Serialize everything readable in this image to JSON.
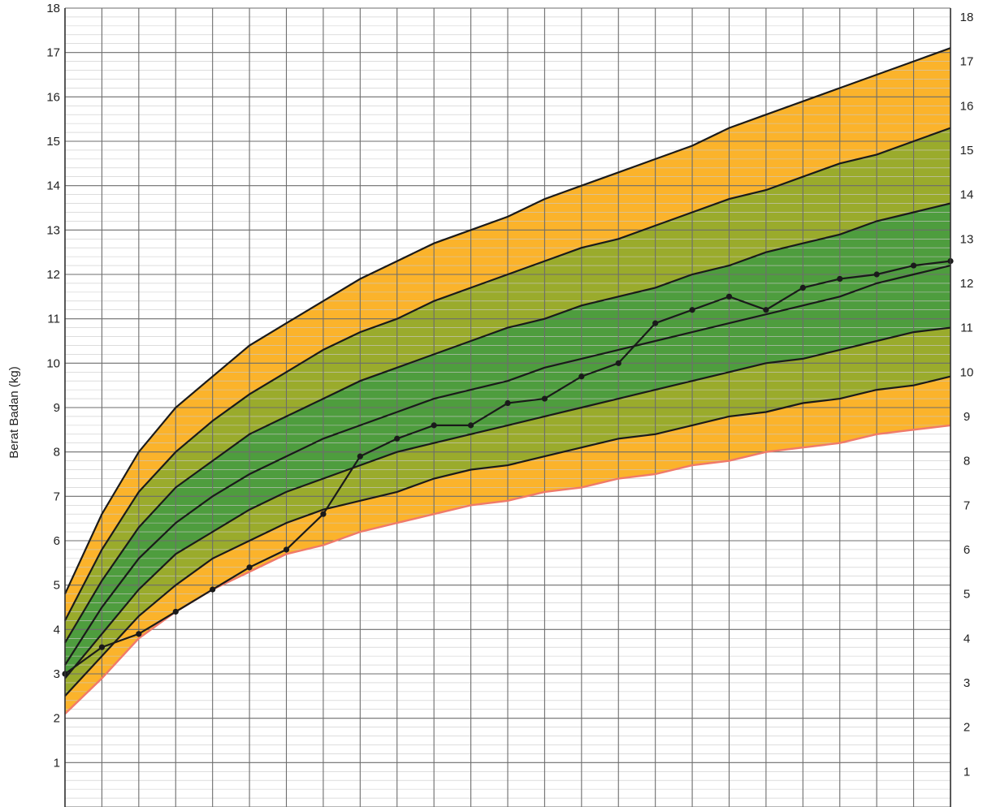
{
  "chart_data": {
    "type": "line",
    "title": "",
    "ylabel": "Berat Badan (kg)",
    "xlabel": "",
    "ylim": [
      0,
      18
    ],
    "xlim": [
      0,
      24
    ],
    "y_ticks_left": [
      "1",
      "2",
      "3",
      "4",
      "5",
      "6",
      "7",
      "8",
      "9",
      "10",
      "11",
      "12",
      "13",
      "14",
      "15",
      "16",
      "17",
      "18"
    ],
    "y_ticks_right": [
      "1",
      "2",
      "3",
      "4",
      "5",
      "6",
      "7",
      "8",
      "9",
      "10",
      "11",
      "12",
      "13",
      "14",
      "15",
      "16",
      "17",
      "18"
    ],
    "grid": true,
    "legend": "none",
    "colors": {
      "outer_band": "#fbb32b",
      "middle_band": "#9aab2c",
      "inner_band": "#4e9d3e",
      "reference_line": "#1a1a1a",
      "lower_edge": "#f07a6a",
      "child_line": "#1a1a1a",
      "grid_major": "#6d6d6d",
      "grid_minor": "#c9c9c9"
    },
    "reference_x": [
      0,
      1,
      2,
      3,
      4,
      5,
      6,
      7,
      8,
      9,
      10,
      11,
      12,
      13,
      14,
      15,
      16,
      17,
      18,
      19,
      20,
      21,
      22,
      23,
      24
    ],
    "reference_curves": [
      {
        "values": [
          2.1,
          2.9,
          3.8,
          4.4,
          4.9,
          5.3,
          5.7,
          5.9,
          6.2,
          6.4,
          6.6,
          6.8,
          6.9,
          7.1,
          7.2,
          7.4,
          7.5,
          7.7,
          7.8,
          8.0,
          8.1,
          8.2,
          8.4,
          8.5,
          8.6
        ]
      },
      {
        "values": [
          2.5,
          3.4,
          4.3,
          5.0,
          5.6,
          6.0,
          6.4,
          6.7,
          6.9,
          7.1,
          7.4,
          7.6,
          7.7,
          7.9,
          8.1,
          8.3,
          8.4,
          8.6,
          8.8,
          8.9,
          9.1,
          9.2,
          9.4,
          9.5,
          9.7
        ]
      },
      {
        "values": [
          2.9,
          3.9,
          4.9,
          5.7,
          6.2,
          6.7,
          7.1,
          7.4,
          7.7,
          8.0,
          8.2,
          8.4,
          8.6,
          8.8,
          9.0,
          9.2,
          9.4,
          9.6,
          9.8,
          10.0,
          10.1,
          10.3,
          10.5,
          10.7,
          10.8
        ]
      },
      {
        "values": [
          3.2,
          4.5,
          5.6,
          6.4,
          7.0,
          7.5,
          7.9,
          8.3,
          8.6,
          8.9,
          9.2,
          9.4,
          9.6,
          9.9,
          10.1,
          10.3,
          10.5,
          10.7,
          10.9,
          11.1,
          11.3,
          11.5,
          11.8,
          12.0,
          12.2
        ]
      },
      {
        "values": [
          3.7,
          5.1,
          6.3,
          7.2,
          7.8,
          8.4,
          8.8,
          9.2,
          9.6,
          9.9,
          10.2,
          10.5,
          10.8,
          11.0,
          11.3,
          11.5,
          11.7,
          12.0,
          12.2,
          12.5,
          12.7,
          12.9,
          13.2,
          13.4,
          13.6
        ]
      },
      {
        "values": [
          4.2,
          5.8,
          7.1,
          8.0,
          8.7,
          9.3,
          9.8,
          10.3,
          10.7,
          11.0,
          11.4,
          11.7,
          12.0,
          12.3,
          12.6,
          12.8,
          13.1,
          13.4,
          13.7,
          13.9,
          14.2,
          14.5,
          14.7,
          15.0,
          15.3
        ]
      },
      {
        "values": [
          4.8,
          6.6,
          8.0,
          9.0,
          9.7,
          10.4,
          10.9,
          11.4,
          11.9,
          12.3,
          12.7,
          13.0,
          13.3,
          13.7,
          14.0,
          14.3,
          14.6,
          14.9,
          15.3,
          15.6,
          15.9,
          16.2,
          16.5,
          16.8,
          17.1
        ]
      }
    ],
    "child_series": {
      "x": [
        0,
        1,
        2,
        3,
        4,
        5,
        6,
        7,
        8,
        9,
        10,
        11,
        12,
        13,
        14,
        15,
        16,
        17,
        18,
        19,
        20,
        21,
        22,
        23,
        24
      ],
      "values": [
        3.0,
        3.6,
        3.9,
        4.4,
        4.9,
        5.4,
        5.8,
        6.6,
        7.9,
        8.3,
        8.6,
        8.6,
        9.1,
        9.2,
        9.7,
        10.0,
        10.9,
        11.2,
        11.5,
        11.2,
        11.7,
        11.9,
        12.0,
        12.2,
        12.3
      ]
    }
  }
}
